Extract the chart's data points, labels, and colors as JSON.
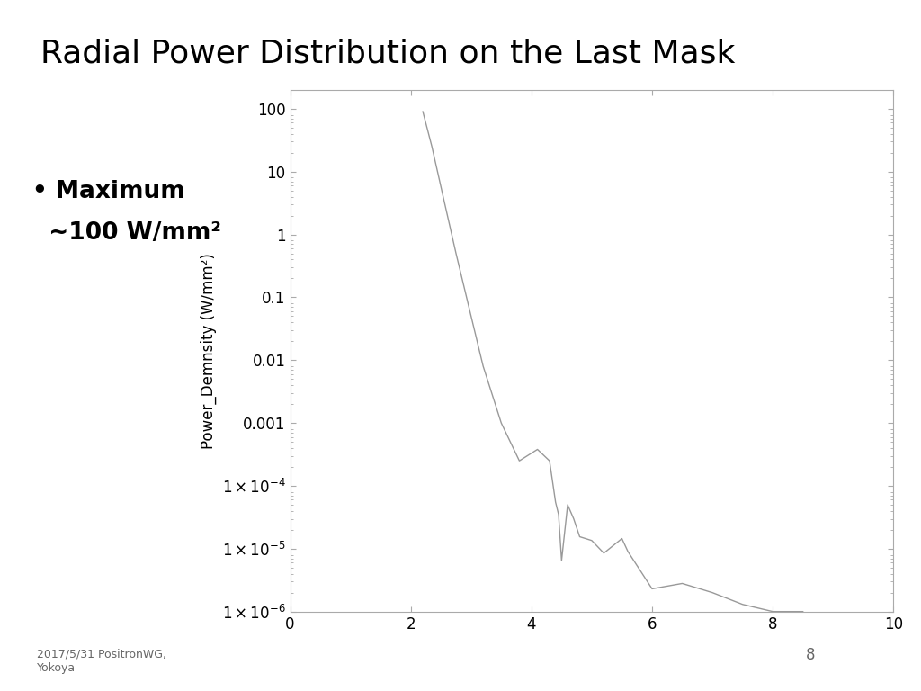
{
  "title": "Radial Power Distribution on the Last Mask",
  "title_bg": "#dce6f1",
  "bullet_line1": "• Maximum",
  "bullet_line2": "  ~100 W/mm²",
  "ylabel": "Power_Demnsity (W/mm²)",
  "footnote": "2017/5/31 PositronWG,\nYokoya",
  "page_num": "8",
  "xlim": [
    0,
    10
  ],
  "ylim_log": [
    1e-06,
    200
  ],
  "x": [
    2.2,
    2.35,
    2.55,
    2.75,
    3.0,
    3.2,
    3.5,
    3.8,
    4.1,
    4.3,
    4.4,
    4.45,
    4.5,
    4.6,
    4.7,
    4.8,
    5.0,
    5.2,
    5.5,
    5.6,
    6.0,
    6.5,
    7.0,
    7.5,
    8.0,
    8.5
  ],
  "y": [
    90,
    25,
    3.5,
    0.5,
    0.05,
    0.008,
    0.001,
    0.00025,
    0.00038,
    0.00025,
    5.5e-05,
    3.5e-05,
    6.5e-06,
    5e-05,
    3e-05,
    1.55e-05,
    1.35e-05,
    8.5e-06,
    1.45e-05,
    9e-06,
    2.3e-06,
    2.8e-06,
    2e-06,
    1.3e-06,
    1e-06,
    1e-06
  ],
  "line_color": "#999999",
  "bg_color": "#ffffff",
  "spine_color": "#aaaaaa",
  "tick_color": "#aaaaaa"
}
